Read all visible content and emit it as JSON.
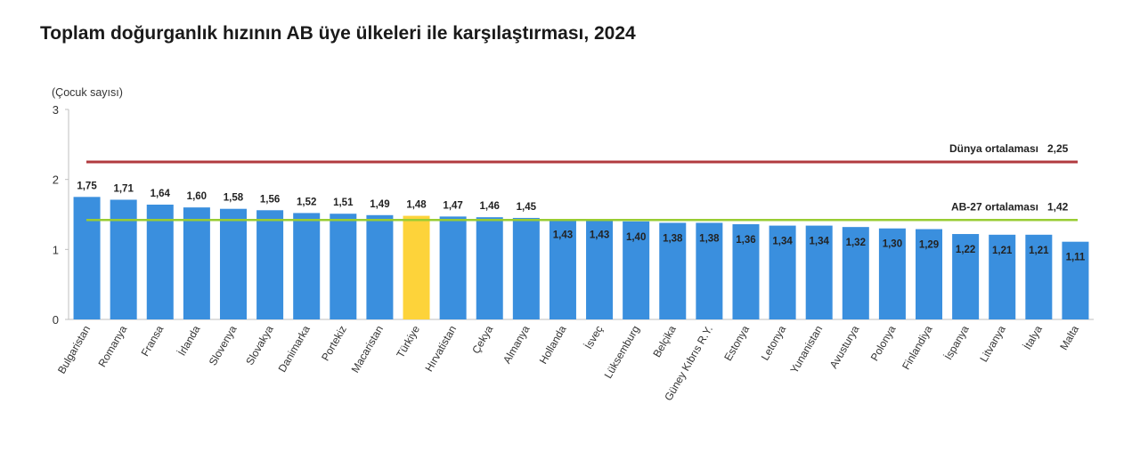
{
  "title": "Toplam doğurganlık hızının AB üye ülkeleri ile karşılaştırması, 2024",
  "colors": {
    "bar": "#3a8fde",
    "highlight": "#fdd33a",
    "world_line": "#b13a3f",
    "eu_line": "#99cc33",
    "axis": "#bfbfbf"
  },
  "chart_data": {
    "type": "bar",
    "ylabel": "(Çocuk sayısı)",
    "ylim": [
      0,
      3
    ],
    "yticks": [
      "0",
      "1",
      "2",
      "3"
    ],
    "categories": [
      "Bulgaristan",
      "Romanya",
      "Fransa",
      "İrlanda",
      "Slovenya",
      "Slovakya",
      "Danimarka",
      "Portekiz",
      "Macaristan",
      "Türkiye",
      "Hırvatistan",
      "Çekya",
      "Almanya",
      "Hollanda",
      "İsveç",
      "Lüksemburg",
      "Belçika",
      "Güney Kıbrıs R.Y.",
      "Estonya",
      "Letonya",
      "Yunanistan",
      "Avusturya",
      "Polonya",
      "Finlandiya",
      "İspanya",
      "Litvanya",
      "İtalya",
      "Malta"
    ],
    "values": [
      1.75,
      1.71,
      1.64,
      1.6,
      1.58,
      1.56,
      1.52,
      1.51,
      1.49,
      1.48,
      1.47,
      1.46,
      1.45,
      1.43,
      1.43,
      1.4,
      1.38,
      1.38,
      1.36,
      1.34,
      1.34,
      1.32,
      1.3,
      1.29,
      1.22,
      1.21,
      1.21,
      1.11
    ],
    "value_labels": [
      "1,75",
      "1,71",
      "1,64",
      "1,60",
      "1,58",
      "1,56",
      "1,52",
      "1,51",
      "1,49",
      "1,48",
      "1,47",
      "1,46",
      "1,45",
      "1,43",
      "1,43",
      "1,40",
      "1,38",
      "1,38",
      "1,36",
      "1,34",
      "1,34",
      "1,32",
      "1,30",
      "1,29",
      "1,22",
      "1,21",
      "1,21",
      "1,11"
    ],
    "highlight_category": "Türkiye",
    "reference_lines": [
      {
        "label": "Dünya ortalaması",
        "value": 2.25,
        "value_label": "2,25",
        "color": "#b13a3f"
      },
      {
        "label": "AB-27 ortalaması",
        "value": 1.42,
        "value_label": "1,42",
        "color": "#99cc33"
      }
    ],
    "grid": false,
    "legend": "none"
  }
}
